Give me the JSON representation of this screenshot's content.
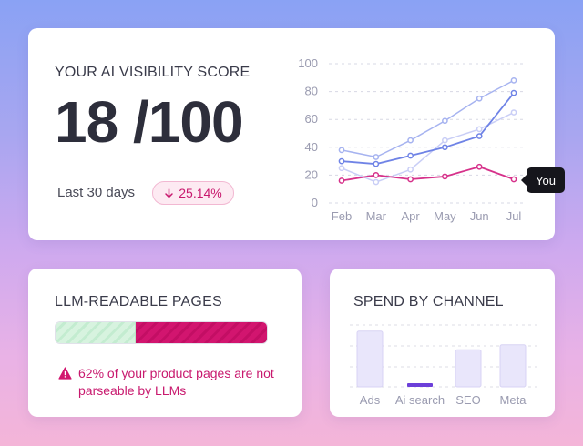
{
  "score_card": {
    "title": "YOUR AI VISIBILITY SCORE",
    "score": "18 /100",
    "period": "Last 30 days",
    "delta": "25.14%",
    "delta_direction": "down",
    "delta_color": "#c8196e"
  },
  "chart_data": [
    {
      "type": "line",
      "categories": [
        "Feb",
        "Mar",
        "Apr",
        "May",
        "Jun",
        "Jul"
      ],
      "ylim": [
        0,
        100
      ],
      "yticks": [
        0,
        20,
        40,
        60,
        80,
        100
      ],
      "grid": true,
      "series": [
        {
          "name": "You",
          "color": "#d6318a",
          "values": [
            16,
            20,
            17,
            19,
            26,
            17
          ]
        },
        {
          "color": "#6f83e6",
          "values": [
            30,
            28,
            34,
            40,
            48,
            79
          ]
        },
        {
          "color": "#a6b3f0",
          "values": [
            38,
            33,
            45,
            59,
            75,
            88
          ]
        },
        {
          "color": "#c9cef6",
          "values": [
            25,
            15,
            24,
            45,
            53,
            65
          ]
        }
      ],
      "tooltip": "You"
    },
    {
      "type": "bar",
      "categories": [
        "Ads",
        "Ai search",
        "SEO",
        "Meta"
      ],
      "values": [
        45,
        3,
        30,
        34
      ],
      "ylim": [
        0,
        50
      ],
      "grid": true,
      "colors": {
        "bar_fill": "#e9e6fb",
        "bar_stroke": "#d8d3f4",
        "highlight": "#6c3fd9"
      }
    }
  ],
  "pages_card": {
    "title": "LLM-READABLE PAGES",
    "readable_fraction": 0.38,
    "warning": "62% of your product pages are not parseable by LLMs"
  },
  "spend_card": {
    "title": "SPEND BY CHANNEL"
  },
  "icons": {
    "delta": "arrow-down-icon",
    "warning": "warning-triangle-icon"
  }
}
